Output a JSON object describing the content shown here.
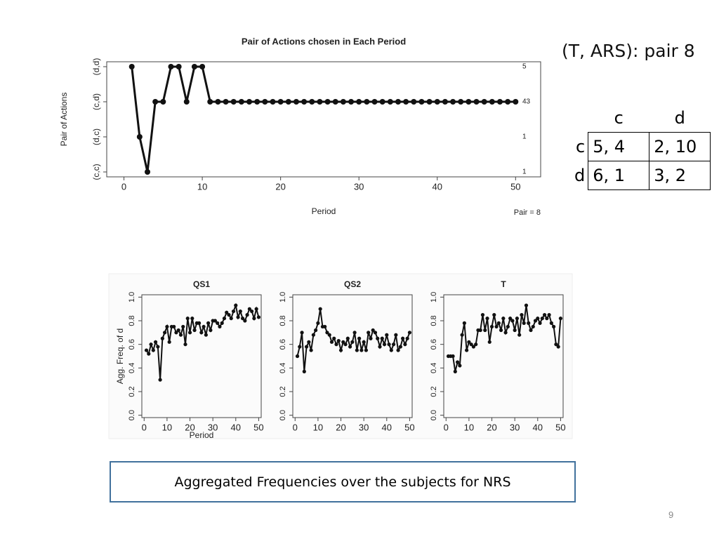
{
  "title": "(T, ARS): pair 8",
  "table": {
    "columns": [
      "c",
      "d"
    ],
    "rows": [
      [
        "c",
        "5, 4",
        "2, 10"
      ],
      [
        "d",
        "6, 1",
        "3, 2"
      ]
    ]
  },
  "caption": "Aggregated Frequencies over the subjects for NRS",
  "page_number": "9",
  "chart_data": [
    {
      "type": "line",
      "title": "Pair of Actions chosen in Each Period",
      "xlabel": "Period",
      "ylabel": "Pair of Actions",
      "footnote": "Pair = 8",
      "x": [
        1,
        2,
        3,
        4,
        5,
        6,
        7,
        8,
        9,
        10,
        11,
        12,
        13,
        14,
        15,
        16,
        17,
        18,
        19,
        20,
        21,
        22,
        23,
        24,
        25,
        26,
        27,
        28,
        29,
        30,
        31,
        32,
        33,
        34,
        35,
        36,
        37,
        38,
        39,
        40,
        41,
        42,
        43,
        44,
        45,
        46,
        47,
        48,
        49,
        50
      ],
      "values": [
        4,
        2,
        1,
        3,
        3,
        4,
        4,
        3,
        4,
        4,
        3,
        3,
        3,
        3,
        3,
        3,
        3,
        3,
        3,
        3,
        3,
        3,
        3,
        3,
        3,
        3,
        3,
        3,
        3,
        3,
        3,
        3,
        3,
        3,
        3,
        3,
        3,
        3,
        3,
        3,
        3,
        3,
        3,
        3,
        3,
        3,
        3,
        3,
        3,
        3
      ],
      "xlim": [
        -2.2,
        53.2
      ],
      "xticks": [
        0,
        10,
        20,
        30,
        40,
        50
      ],
      "ylim": [
        0.86,
        4.14
      ],
      "yticks": [
        {
          "value": 1,
          "label": "(c,c)"
        },
        {
          "value": 2,
          "label": "(d,c)"
        },
        {
          "value": 3,
          "label": "(c,d)"
        },
        {
          "value": 4,
          "label": "(d,d)"
        }
      ],
      "annotations": [
        "1",
        "1",
        "43",
        "5"
      ],
      "color": "#111"
    },
    {
      "type": "line",
      "title": "QS1",
      "xlabel": "Period",
      "ylabel": "Agg. Freq. of d",
      "x": [
        1,
        2,
        3,
        4,
        5,
        6,
        7,
        8,
        9,
        10,
        11,
        12,
        13,
        14,
        15,
        16,
        17,
        18,
        19,
        20,
        21,
        22,
        23,
        24,
        25,
        26,
        27,
        28,
        29,
        30,
        31,
        32,
        33,
        34,
        35,
        36,
        37,
        38,
        39,
        40,
        41,
        42,
        43,
        44,
        45,
        46,
        47,
        48,
        49,
        50
      ],
      "values": [
        0.55,
        0.52,
        0.6,
        0.55,
        0.62,
        0.58,
        0.3,
        0.65,
        0.7,
        0.75,
        0.62,
        0.75,
        0.75,
        0.7,
        0.72,
        0.68,
        0.75,
        0.6,
        0.82,
        0.7,
        0.82,
        0.72,
        0.78,
        0.78,
        0.7,
        0.75,
        0.68,
        0.78,
        0.72,
        0.8,
        0.8,
        0.78,
        0.75,
        0.78,
        0.82,
        0.87,
        0.85,
        0.82,
        0.88,
        0.93,
        0.83,
        0.88,
        0.82,
        0.8,
        0.85,
        0.9,
        0.88,
        0.82,
        0.9,
        0.83
      ],
      "xlim": [
        -1,
        51.1
      ],
      "xticks": [
        0,
        10,
        20,
        30,
        40,
        50
      ],
      "ylim": [
        -0.02,
        1.02
      ],
      "yticks": [
        {
          "value": 0,
          "label": "0.0"
        },
        {
          "value": 0.2,
          "label": "0.2"
        },
        {
          "value": 0.4,
          "label": "0.4"
        },
        {
          "value": 0.6,
          "label": "0.6"
        },
        {
          "value": 0.8,
          "label": "0.8"
        },
        {
          "value": 1,
          "label": "1.0"
        }
      ],
      "color": "#111"
    },
    {
      "type": "line",
      "title": "QS2",
      "x": [
        1,
        2,
        3,
        4,
        5,
        6,
        7,
        8,
        9,
        10,
        11,
        12,
        13,
        14,
        15,
        16,
        17,
        18,
        19,
        20,
        21,
        22,
        23,
        24,
        25,
        26,
        27,
        28,
        29,
        30,
        31,
        32,
        33,
        34,
        35,
        36,
        37,
        38,
        39,
        40,
        41,
        42,
        43,
        44,
        45,
        46,
        47,
        48,
        49,
        50
      ],
      "values": [
        0.5,
        0.58,
        0.7,
        0.37,
        0.58,
        0.62,
        0.55,
        0.68,
        0.72,
        0.78,
        0.9,
        0.75,
        0.75,
        0.7,
        0.68,
        0.62,
        0.65,
        0.6,
        0.63,
        0.55,
        0.62,
        0.6,
        0.65,
        0.58,
        0.62,
        0.7,
        0.55,
        0.65,
        0.55,
        0.62,
        0.55,
        0.7,
        0.65,
        0.72,
        0.7,
        0.65,
        0.58,
        0.65,
        0.6,
        0.68,
        0.6,
        0.55,
        0.6,
        0.68,
        0.55,
        0.58,
        0.65,
        0.6,
        0.65,
        0.7
      ],
      "xlim": [
        -1,
        51.1
      ],
      "xticks": [
        0,
        10,
        20,
        30,
        40,
        50
      ],
      "ylim": [
        -0.02,
        1.02
      ],
      "yticks": [
        {
          "value": 0,
          "label": "0.0"
        },
        {
          "value": 0.2,
          "label": "0.2"
        },
        {
          "value": 0.4,
          "label": "0.4"
        },
        {
          "value": 0.6,
          "label": "0.6"
        },
        {
          "value": 0.8,
          "label": "0.8"
        },
        {
          "value": 1,
          "label": "1.0"
        }
      ],
      "color": "#111"
    },
    {
      "type": "line",
      "title": "T",
      "x": [
        1,
        2,
        3,
        4,
        5,
        6,
        7,
        8,
        9,
        10,
        11,
        12,
        13,
        14,
        15,
        16,
        17,
        18,
        19,
        20,
        21,
        22,
        23,
        24,
        25,
        26,
        27,
        28,
        29,
        30,
        31,
        32,
        33,
        34,
        35,
        36,
        37,
        38,
        39,
        40,
        41,
        42,
        43,
        44,
        45,
        46,
        47,
        48,
        49,
        50
      ],
      "values": [
        0.5,
        0.5,
        0.5,
        0.37,
        0.45,
        0.42,
        0.68,
        0.78,
        0.55,
        0.62,
        0.6,
        0.58,
        0.6,
        0.72,
        0.72,
        0.85,
        0.72,
        0.82,
        0.62,
        0.75,
        0.85,
        0.75,
        0.78,
        0.72,
        0.82,
        0.7,
        0.75,
        0.82,
        0.8,
        0.72,
        0.82,
        0.68,
        0.85,
        0.78,
        0.93,
        0.78,
        0.72,
        0.75,
        0.8,
        0.82,
        0.78,
        0.82,
        0.85,
        0.82,
        0.85,
        0.78,
        0.75,
        0.6,
        0.58,
        0.82
      ],
      "xlim": [
        -1,
        51.1
      ],
      "xticks": [
        0,
        10,
        20,
        30,
        40,
        50
      ],
      "ylim": [
        -0.02,
        1.02
      ],
      "yticks": [
        {
          "value": 0,
          "label": "0.0"
        },
        {
          "value": 0.2,
          "label": "0.2"
        },
        {
          "value": 0.4,
          "label": "0.4"
        },
        {
          "value": 0.6,
          "label": "0.6"
        },
        {
          "value": 0.8,
          "label": "0.8"
        },
        {
          "value": 1,
          "label": "1.0"
        }
      ],
      "color": "#111"
    }
  ]
}
